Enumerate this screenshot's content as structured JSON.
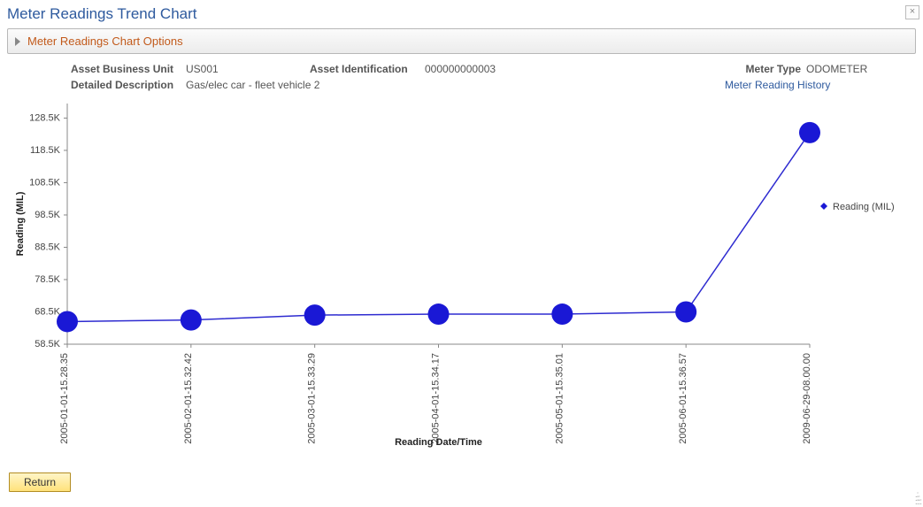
{
  "title": "Meter Readings Trend Chart",
  "options_label": "Meter Readings Chart Options",
  "close_glyph": "×",
  "meta": {
    "bu_label": "Asset Business Unit",
    "bu_value": "US001",
    "assetid_label": "Asset Identification",
    "assetid_value": "000000000003",
    "metertype_label": "Meter Type",
    "metertype_value": "ODOMETER",
    "desc_label": "Detailed Description",
    "desc_value": "Gas/elec car - fleet vehicle 2",
    "history_link": "Meter Reading History"
  },
  "chart": {
    "type": "line",
    "y_label": "Reading (MIL)",
    "x_label": "Reading Date/Time",
    "legend_label": "Reading (MIL)",
    "y_ticks": [
      58.5,
      68.5,
      78.5,
      88.5,
      98.5,
      108.5,
      118.5,
      128.5
    ],
    "y_tick_labels": [
      "58.5K",
      "68.5K",
      "78.5K",
      "88.5K",
      "98.5K",
      "108.5K",
      "118.5K",
      "128.5K"
    ],
    "ylim": [
      58.5,
      133
    ],
    "x_categories": [
      "2005-01-01-15.28.35",
      "2005-02-01-15.32.42",
      "2005-03-01-15.33.29",
      "2005-04-01-15.34.17",
      "2005-05-01-15.35.01",
      "2005-06-01-15.36.57",
      "2009-06-29-08.00.00"
    ],
    "values": [
      65.5,
      66.0,
      67.5,
      67.8,
      67.8,
      68.5,
      124
    ],
    "line_color": "#2e2bd0",
    "marker_color": "#1a18d5",
    "marker_radius": 12,
    "line_width": 1.5,
    "background_color": "#ffffff",
    "axis_color": "#888888",
    "tick_label_fontsize": 11,
    "axis_title_fontsize": 11
  },
  "return_label": "Return"
}
